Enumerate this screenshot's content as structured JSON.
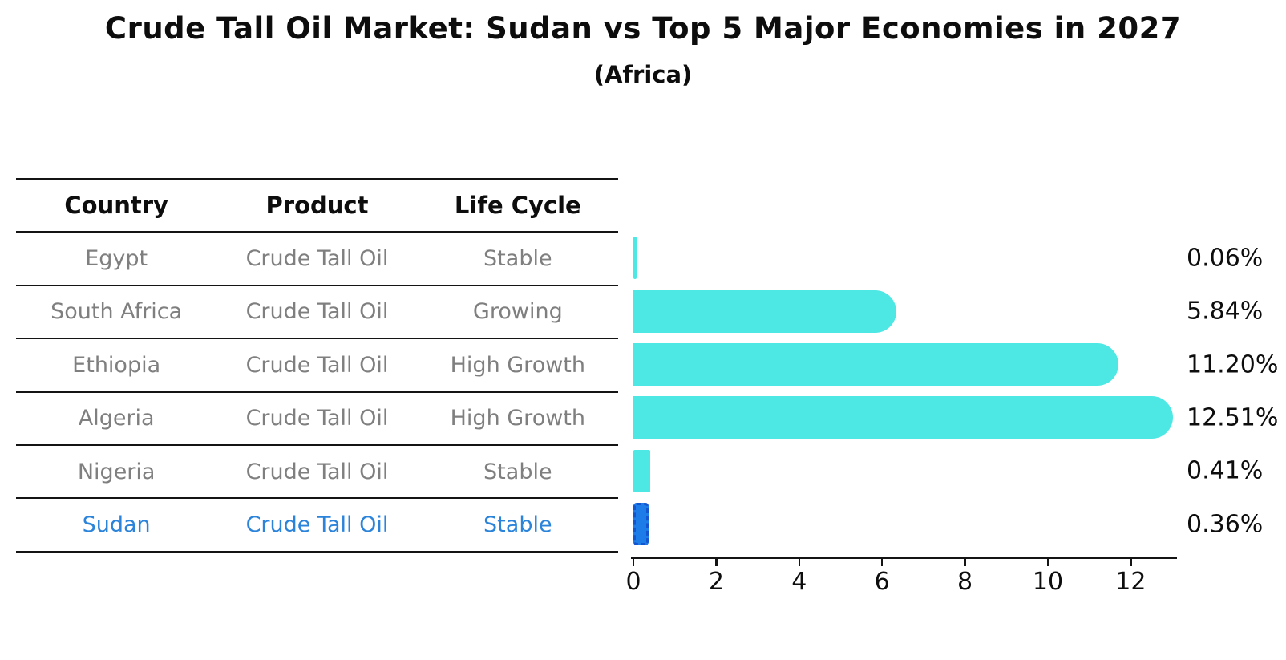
{
  "title": "Crude Tall Oil Market: Sudan vs Top 5 Major Economies in 2027",
  "subtitle": "(Africa)",
  "table": {
    "headers": [
      "Country",
      "Product",
      "Life Cycle"
    ],
    "rows": [
      {
        "country": "Egypt",
        "product": "Crude Tall Oil",
        "life_cycle": "Stable",
        "highlight": false
      },
      {
        "country": "South Africa",
        "product": "Crude Tall Oil",
        "life_cycle": "Growing",
        "highlight": false
      },
      {
        "country": "Ethiopia",
        "product": "Crude Tall Oil",
        "life_cycle": "High Growth",
        "highlight": false
      },
      {
        "country": "Algeria",
        "product": "Crude Tall Oil",
        "life_cycle": "High Growth",
        "highlight": false
      },
      {
        "country": "Nigeria",
        "product": "Crude Tall Oil",
        "life_cycle": "Stable",
        "highlight": false
      },
      {
        "country": "Sudan",
        "product": "Crude Tall Oil",
        "life_cycle": "Stable",
        "highlight": true
      }
    ]
  },
  "chart_data": {
    "type": "bar",
    "orientation": "horizontal",
    "title": "Crude Tall Oil Market: Sudan vs Top 5 Major Economies in 2027",
    "subtitle": "(Africa)",
    "categories": [
      "Egypt",
      "South Africa",
      "Ethiopia",
      "Algeria",
      "Nigeria",
      "Sudan"
    ],
    "values": [
      0.06,
      5.84,
      11.2,
      12.51,
      0.41,
      0.36
    ],
    "value_labels": [
      "0.06%",
      "5.84%",
      "11.20%",
      "12.51%",
      "0.41%",
      "0.36%"
    ],
    "x_ticks": [
      0,
      2,
      4,
      6,
      8,
      10,
      12
    ],
    "x_tick_labels": [
      "0",
      "2",
      "4",
      "6",
      "8",
      "10",
      "12"
    ],
    "xlim": [
      0,
      13.1
    ],
    "xlabel": "",
    "ylabel": "",
    "grid": false,
    "legend": "none",
    "bar_color": "#4ee8e4",
    "highlight": {
      "index": 5,
      "category": "Sudan",
      "fill": "#1e7ce8",
      "edge": "#1355cf",
      "edge_style": "dashed"
    },
    "text_color": "#0d0d0d",
    "muted_text_color": "#7f7f7f",
    "highlight_text_color": "#2b84da"
  }
}
